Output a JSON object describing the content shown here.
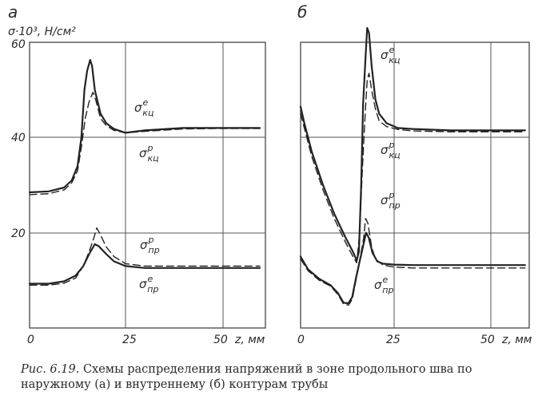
{
  "figure": {
    "caption_label": "Рис. 6.19.",
    "caption_text": "Схемы распределения напряжений в зоне продольного шва по наружному (а) и внутреннему (б) контурам трубы"
  },
  "chart_data": [
    {
      "type": "line",
      "panel_label": "а",
      "ylabel": "σ·10³, Н/см²",
      "xlabel": "z, мм",
      "xlim": [
        0,
        60
      ],
      "ylim": [
        0,
        60
      ],
      "xticks": [
        "0",
        "25",
        "50"
      ],
      "yticks": [
        "20",
        "40",
        "60"
      ],
      "grid": true,
      "series": [
        {
          "name": "σкц^е",
          "style": "solid",
          "points": [
            [
              0,
              28.5
            ],
            [
              5,
              28.7
            ],
            [
              9,
              29.5
            ],
            [
              11,
              31
            ],
            [
              12.5,
              34
            ],
            [
              13.5,
              40
            ],
            [
              14.3,
              50
            ],
            [
              15,
              54
            ],
            [
              15.8,
              56.3
            ],
            [
              16.3,
              55
            ],
            [
              17,
              50
            ],
            [
              18.5,
              45
            ],
            [
              20,
              43
            ],
            [
              22,
              41.8
            ],
            [
              25,
              41
            ],
            [
              30,
              41.5
            ],
            [
              40,
              42
            ],
            [
              50,
              42
            ],
            [
              60,
              42
            ]
          ]
        },
        {
          "name": "σкц^р",
          "style": "dashed",
          "points": [
            [
              0,
              28
            ],
            [
              5,
              28.2
            ],
            [
              9,
              29
            ],
            [
              11,
              30.5
            ],
            [
              12.5,
              33
            ],
            [
              13.5,
              38
            ],
            [
              14.5,
              44
            ],
            [
              15.5,
              47.5
            ],
            [
              16.5,
              49.5
            ],
            [
              17.2,
              48
            ],
            [
              18.5,
              44
            ],
            [
              20,
              42.5
            ],
            [
              22,
              41.5
            ],
            [
              25,
              41
            ],
            [
              30,
              41.3
            ],
            [
              40,
              41.8
            ],
            [
              50,
              41.9
            ],
            [
              60,
              41.9
            ]
          ]
        },
        {
          "name": "σпр^р",
          "style": "dashed",
          "points": [
            [
              0,
              9
            ],
            [
              5,
              9
            ],
            [
              9,
              9.4
            ],
            [
              12,
              10.5
            ],
            [
              14,
              13
            ],
            [
              15.5,
              16
            ],
            [
              16.8,
              19
            ],
            [
              17.5,
              21
            ],
            [
              18.2,
              20
            ],
            [
              20,
              17
            ],
            [
              22,
              15
            ],
            [
              25,
              13.5
            ],
            [
              30,
              13
            ],
            [
              40,
              13
            ],
            [
              50,
              13
            ],
            [
              60,
              13
            ]
          ]
        },
        {
          "name": "σпр^е",
          "style": "solid",
          "points": [
            [
              0,
              9.3
            ],
            [
              5,
              9.3
            ],
            [
              9,
              9.8
            ],
            [
              12,
              11
            ],
            [
              14,
              13
            ],
            [
              15.5,
              15.5
            ],
            [
              17,
              17.6
            ],
            [
              18,
              17.2
            ],
            [
              20,
              15.5
            ],
            [
              22,
              14
            ],
            [
              25,
              13
            ],
            [
              30,
              12.6
            ],
            [
              40,
              12.6
            ],
            [
              50,
              12.6
            ],
            [
              60,
              12.6
            ]
          ]
        }
      ]
    },
    {
      "type": "line",
      "panel_label": "б",
      "xlabel": "z, мм",
      "xlim": [
        0,
        60
      ],
      "ylim": [
        0,
        60
      ],
      "xticks": [
        "0",
        "25",
        "50"
      ],
      "grid": true,
      "series": [
        {
          "name": "σкц^е",
          "style": "solid",
          "points": [
            [
              0,
              46.5
            ],
            [
              1,
              43
            ],
            [
              3,
              37
            ],
            [
              6,
              30
            ],
            [
              9,
              24
            ],
            [
              12,
              19
            ],
            [
              14,
              16
            ],
            [
              15,
              14.2
            ],
            [
              15.6,
              16
            ],
            [
              16.2,
              30
            ],
            [
              16.7,
              47
            ],
            [
              17.3,
              56
            ],
            [
              17.8,
              63
            ],
            [
              18.3,
              62
            ],
            [
              19,
              55
            ],
            [
              20,
              48
            ],
            [
              21,
              45
            ],
            [
              23,
              43
            ],
            [
              26,
              42
            ],
            [
              30,
              41.8
            ],
            [
              40,
              41.5
            ],
            [
              50,
              41.5
            ],
            [
              60,
              41.5
            ]
          ]
        },
        {
          "name": "σкц^р",
          "style": "dashed",
          "points": [
            [
              0,
              45
            ],
            [
              1,
              42
            ],
            [
              3,
              36
            ],
            [
              6,
              29
            ],
            [
              9,
              23
            ],
            [
              12,
              18
            ],
            [
              14,
              15
            ],
            [
              15,
              13.7
            ],
            [
              15.8,
              20
            ],
            [
              16.5,
              33
            ],
            [
              17.2,
              44
            ],
            [
              17.8,
              52
            ],
            [
              18.3,
              53.5
            ],
            [
              19,
              50
            ],
            [
              20,
              46
            ],
            [
              21,
              43.5
            ],
            [
              23,
              42.3
            ],
            [
              26,
              41.7
            ],
            [
              30,
              41.4
            ],
            [
              40,
              41.2
            ],
            [
              50,
              41.2
            ],
            [
              60,
              41.2
            ]
          ]
        },
        {
          "name": "σпр^р",
          "style": "dashed",
          "points": [
            [
              0,
              14.5
            ],
            [
              2,
              12
            ],
            [
              5,
              10
            ],
            [
              8,
              8.8
            ],
            [
              10,
              7
            ],
            [
              11.5,
              5
            ],
            [
              12.8,
              4.8
            ],
            [
              13.8,
              6
            ],
            [
              14.8,
              10
            ],
            [
              15.8,
              14.2
            ],
            [
              16.8,
              18.5
            ],
            [
              17.4,
              23
            ],
            [
              18,
              22
            ],
            [
              19,
              17
            ],
            [
              20,
              14.5
            ],
            [
              22,
              13.2
            ],
            [
              25,
              12.8
            ],
            [
              30,
              12.6
            ],
            [
              40,
              12.6
            ],
            [
              50,
              12.6
            ],
            [
              60,
              12.6
            ]
          ]
        },
        {
          "name": "σпр^е",
          "style": "solid",
          "points": [
            [
              0,
              15
            ],
            [
              2,
              12.3
            ],
            [
              5,
              10.3
            ],
            [
              8,
              9
            ],
            [
              10,
              7.3
            ],
            [
              11.5,
              5.3
            ],
            [
              12.8,
              5.2
            ],
            [
              13.8,
              6.5
            ],
            [
              14.8,
              10.5
            ],
            [
              15.8,
              14
            ],
            [
              16.8,
              17.5
            ],
            [
              17.5,
              20
            ],
            [
              18.2,
              19
            ],
            [
              19.2,
              15.8
            ],
            [
              20.5,
              14
            ],
            [
              22,
              13.5
            ],
            [
              25,
              13.3
            ],
            [
              30,
              13.2
            ],
            [
              40,
              13.2
            ],
            [
              50,
              13.2
            ],
            [
              60,
              13.2
            ]
          ]
        }
      ]
    }
  ],
  "annotations_a": [
    {
      "series": "σкц^е",
      "base": "σ",
      "sub": "кц",
      "sup": "е"
    },
    {
      "series": "σкц^р",
      "base": "σ",
      "sub": "кц",
      "sup": "р"
    },
    {
      "series": "σпр^р",
      "base": "σ",
      "sub": "пр",
      "sup": "р"
    },
    {
      "series": "σпр^е",
      "base": "σ",
      "sub": "пр",
      "sup": "е"
    }
  ],
  "annotations_b": [
    {
      "series": "σкц^е",
      "base": "σ",
      "sub": "кц",
      "sup": "е"
    },
    {
      "series": "σкц^р",
      "base": "σ",
      "sub": "кц",
      "sup": "р"
    },
    {
      "series": "σпр^р",
      "base": "σ",
      "sub": "пр",
      "sup": "р"
    },
    {
      "series": "σпр^е",
      "base": "σ",
      "sub": "пр",
      "sup": "е"
    }
  ]
}
